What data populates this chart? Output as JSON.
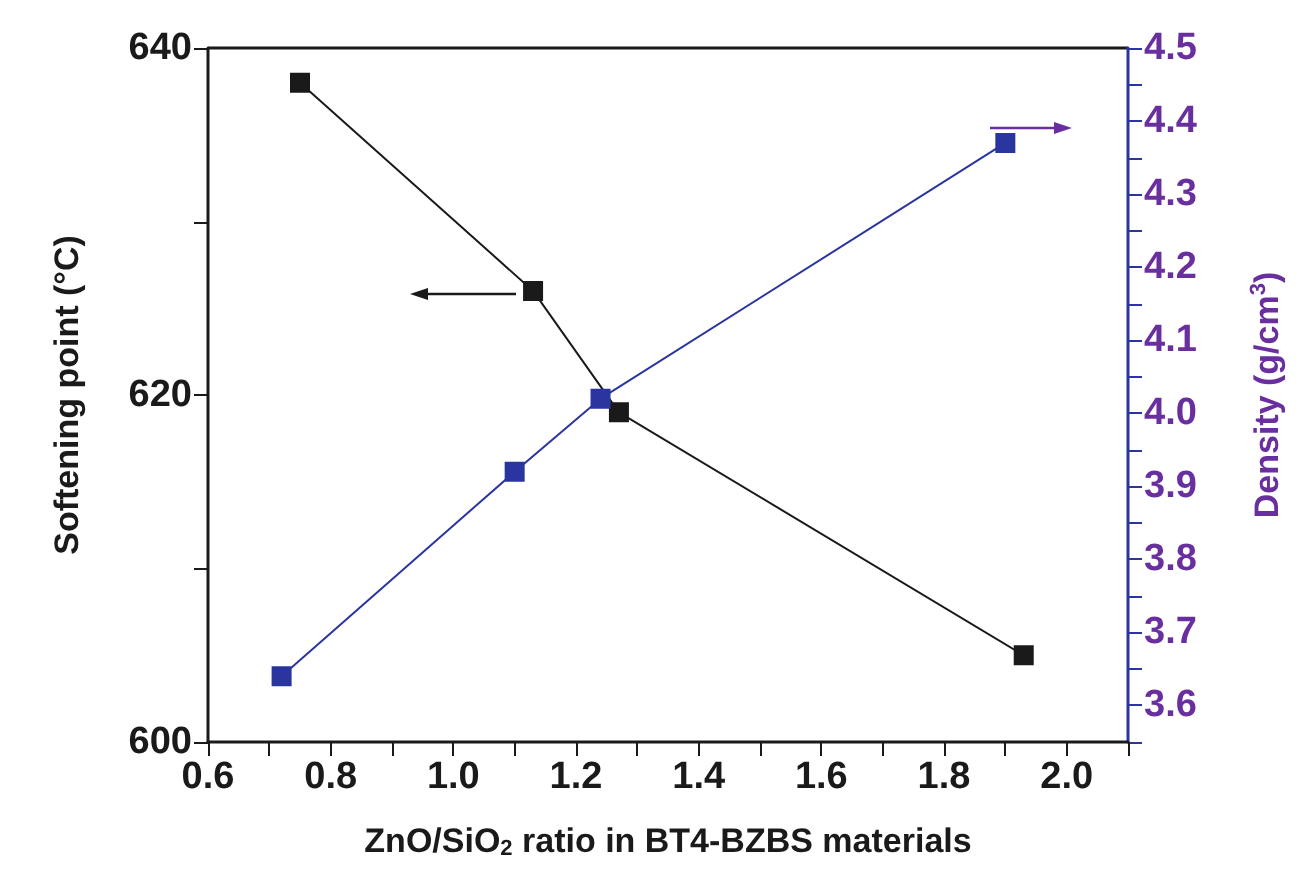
{
  "chart_data": {
    "type": "line",
    "xlabel": "ZnO/SiO$_{2}$ ratio in BT4-BZBS materials",
    "ylabel": "Softening point (°C)",
    "y2label": "Density (g/cm$^{3}$)",
    "xlim": [
      0.6,
      2.1
    ],
    "xticks": [
      0.6,
      {
        "value": 0.7,
        "label": null
      },
      0.8,
      {
        "value": 0.9,
        "label": null
      },
      {
        "value": 1.0,
        "label": "1.0"
      },
      {
        "value": 1.1,
        "label": null
      },
      1.2,
      {
        "value": 1.3,
        "label": null
      },
      1.4,
      {
        "value": 1.5,
        "label": null
      },
      1.6,
      {
        "value": 1.7,
        "label": null
      },
      1.8,
      {
        "value": 1.9,
        "label": null
      },
      {
        "value": 2.0,
        "label": "2.0"
      },
      {
        "value": 2.1,
        "label": null
      }
    ],
    "ylim": [
      600,
      640
    ],
    "yticks": [
      600,
      {
        "value": 610,
        "label": null
      },
      620,
      {
        "value": 630,
        "label": null
      },
      640
    ],
    "y2lim": [
      3.55,
      4.5
    ],
    "y2ticks": [
      {
        "value": 3.55,
        "label": null
      },
      3.6,
      {
        "value": 3.65,
        "label": null
      },
      3.7,
      {
        "value": 3.75,
        "label": null
      },
      3.8,
      {
        "value": 3.85,
        "label": null
      },
      3.9,
      {
        "value": 3.95,
        "label": null
      },
      {
        "value": 4.0,
        "label": "4.0"
      },
      {
        "value": 4.05,
        "label": null
      },
      4.1,
      {
        "value": 4.15,
        "label": null
      },
      4.2,
      {
        "value": 4.25,
        "label": null
      },
      4.3,
      {
        "value": 4.35,
        "label": null
      },
      4.4,
      {
        "value": 4.45,
        "label": null
      },
      4.5
    ],
    "marker": "square",
    "line_style": "solid",
    "series": [
      {
        "color": "#1a1a1a",
        "x": [
          0.75,
          1.13,
          1.27,
          1.93
        ],
        "values": [
          638,
          626,
          619,
          605
        ]
      },
      {
        "color": "#2a35a0",
        "axis": "y2",
        "x": [
          0.72,
          1.1,
          1.24,
          1.9
        ],
        "values": [
          3.64,
          3.92,
          4.02,
          4.37
        ]
      }
    ]
  }
}
